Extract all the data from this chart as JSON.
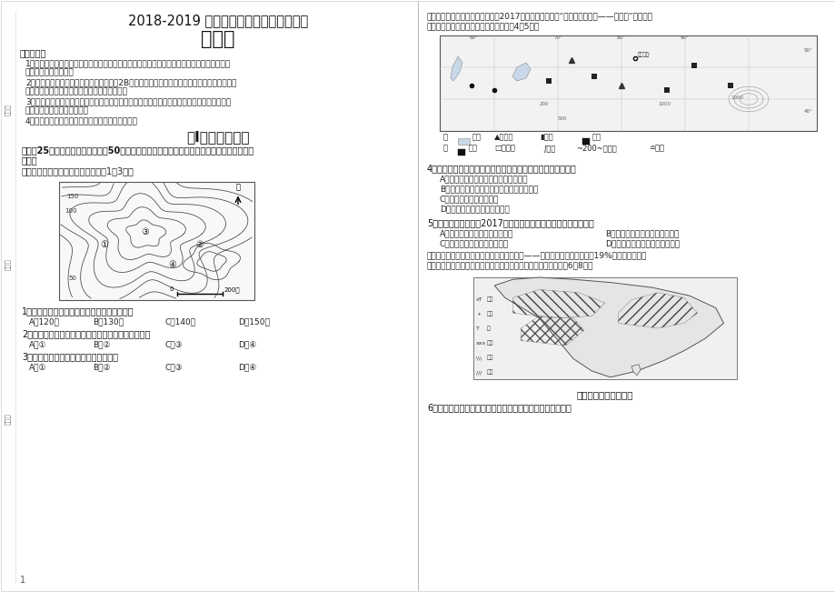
{
  "title1": "2018-2019 学年下学期高二年级期中考试",
  "title2": "地　理",
  "notice_title": "注意事项：",
  "n1a": "1．答题前，先将自己的姓名、准考证号填写在试题卷和答题卡上，并将准考证号条形码粘贴在",
  "n1b": "答题卡上的指定位置。",
  "n2a": "2．选择题的作答：每小题选出答案后，用2B铅笔把答题卡上对应题目的答案标号涂黑，写在试",
  "n2b": "题卷、草稿纸和答题卡上的非答题区域均无效。",
  "n3a": "3．非选择题的作答：用签字笔直接答在答题卡上对应的答题区域内，写在试题卷、草稿纸和答",
  "n3b": "题卡上的非答题区域均无效。",
  "n4": "4．考试结束后，请将本试题卷和答题卡一并上交。",
  "sec1_title": "第Ⅰ卷（选择题）",
  "sec1_desc1": "本卷入25个小题，每小题２分，內50分。在每小题给出的四个选项中，只有一项是符合题目要",
  "sec1_desc2": "求的。",
  "map_intro": "下图是某地等高线示意图，据此回筁1～3题。",
  "q1": "1．图示区域内的最大相对高度可能是（　　）",
  "q1a": "A．120米",
  "q1b": "B．130米",
  "q1c": "C．140米",
  "q1d": "D．150米",
  "q2": "2．如发生强降水，最容易受到洪灾冲击的是（　　）",
  "q2a": "A．①",
  "q2b": "B．②",
  "q2c": "C．③",
  "q2d": "D．④",
  "q3": "3．图中四地平均坡度最大的是（　　）",
  "q3a": "A．①",
  "q3b": "B．②",
  "q3c": "C．③",
  "q3d": "D．④",
  "right_intro1": "哈萨克斯坦首都阿斯塔纳成功申办2017年世博会，主题为“未来能源的发展——新能源”，成为首",
  "right_intro2": "次由中亚国家举办的世博会。读图，完成4～5题。",
  "q4": "4．下列有关中亚地区自然地理特征的叙述，正确的是（　　）",
  "q4a": "A．地形以山地丘陵为主，地势西高东低",
  "q4b": "B．地处西风带深受湿润西风影响，气候湿湿",
  "q4c": "C．境内多内河流、内陆湖",
  "q4d": "D．植被以温带落叶阔叶林为主",
  "q5": "5．阿斯塔纳成功申办2017年世博会的主要优势最可能是（　　）",
  "q5a": "A．水陆交通便利，旅客集散量大",
  "q5b": "B．位置优越，位于亚欧连接纽带",
  "q5c": "C．资源丰富，工农业非常发达",
  "q5d": "D．人口多，市场广，服务所量高",
  "india_intro1": "近日一家媒体组织预测称，全球第二大产棉国——印度本年度棉产量将下滑19%，国主产区降水",
  "india_intro2": "偏少，今甘蔗歉收。下图为印度主要农作物的分布图，读图，回筁6～8题。",
  "india_caption": "印度主要农作物分布图",
  "q6": "6．印度农产品产量很大，而出口量很少，其原因是（　　）",
  "bg_color": "#ffffff",
  "page_number": "1"
}
